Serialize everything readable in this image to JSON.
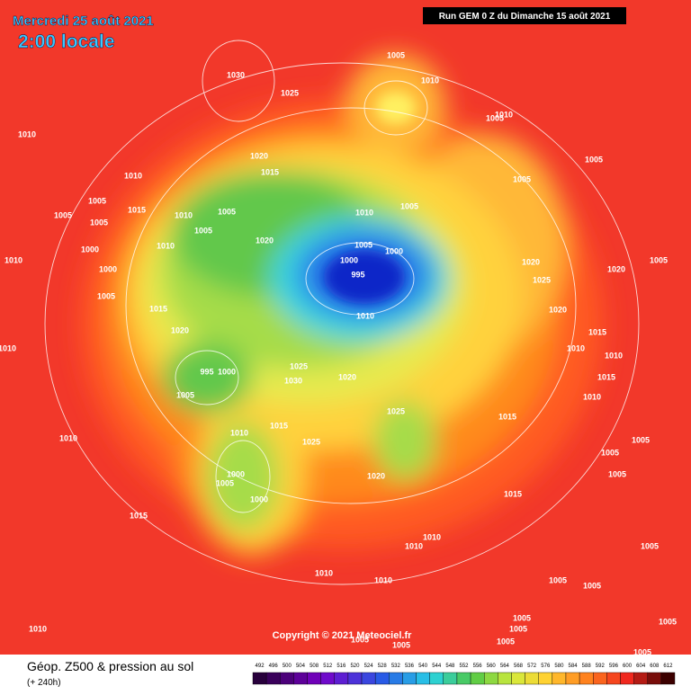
{
  "header": {
    "date": "Mercredi 25 août 2021",
    "time": "2:00 locale",
    "run": "Run GEM 0 Z du Dimanche 15 août 2021"
  },
  "copyright": "Copyright © 2021 Meteociel.fr",
  "footer": {
    "title": "Géop. Z500 & pression au sol",
    "subtitle": "(+ 240h)"
  },
  "scale": {
    "values": [
      492,
      496,
      500,
      504,
      508,
      512,
      516,
      520,
      524,
      528,
      532,
      536,
      540,
      544,
      548,
      552,
      556,
      560,
      564,
      568,
      572,
      576,
      580,
      584,
      588,
      592,
      596,
      600,
      604,
      608,
      612
    ]
  },
  "isobar_labels": [
    1030,
    1025,
    1005,
    1010,
    1010,
    1005,
    1010,
    1020,
    1015,
    1010,
    1005,
    1015,
    1010,
    1005,
    1005,
    1005,
    1010,
    1005,
    1005,
    1005,
    1005,
    1020,
    1000,
    1010,
    1005,
    1000,
    1010,
    1000,
    995,
    1000,
    1020,
    1020,
    1025,
    1005,
    1005,
    1015,
    1010,
    1020,
    1020,
    1015,
    1010,
    1010,
    1010,
    995,
    1000,
    1025,
    1030,
    1020,
    1015,
    1005,
    1010,
    1025,
    1015,
    1010,
    1015,
    1010,
    1025,
    1005,
    1005,
    1005,
    1000,
    1005,
    1020,
    1000,
    1015,
    1015,
    1010,
    1010,
    1010,
    1010,
    1005,
    1005,
    1005,
    1010,
    1005,
    1005,
    1005,
    1005,
    1005,
    1005,
    1005
  ]
}
